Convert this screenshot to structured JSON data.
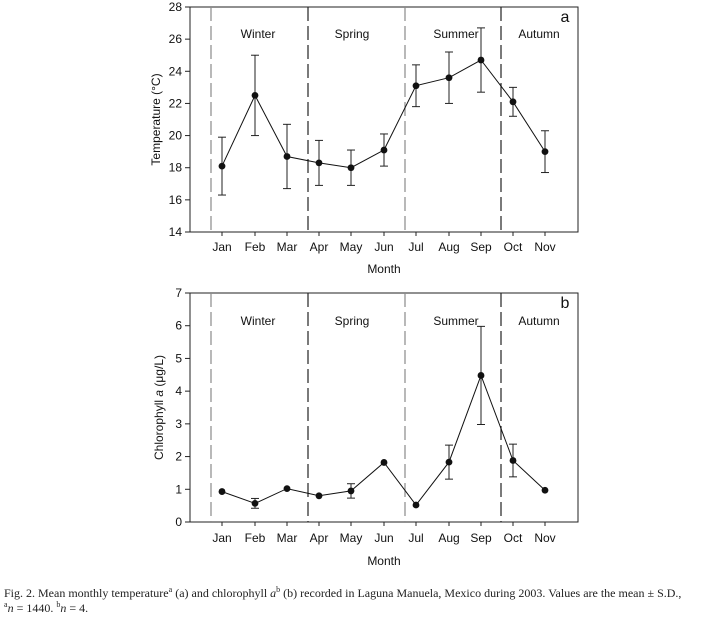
{
  "chart_data": [
    {
      "type": "line",
      "panel_label": "a",
      "xlabel": "Month",
      "ylabel": "Temperature (°C)",
      "ylim": [
        14,
        28
      ],
      "yticks": [
        14,
        16,
        18,
        20,
        22,
        24,
        26,
        28
      ],
      "categories": [
        "Jan",
        "Feb",
        "Mar",
        "Apr",
        "May",
        "Jun",
        "Jul",
        "Aug",
        "Sep",
        "Oct",
        "Nov"
      ],
      "values": [
        18.1,
        22.5,
        18.7,
        18.3,
        18.0,
        19.1,
        23.1,
        23.6,
        24.7,
        22.1,
        19.0
      ],
      "errors": [
        1.8,
        2.5,
        2.0,
        1.4,
        1.1,
        1.0,
        1.3,
        1.6,
        2.0,
        0.9,
        1.3
      ],
      "seasons": [
        "Winter",
        "Spring",
        "Summer",
        "Autumn"
      ],
      "grid": false,
      "color": "#111111"
    },
    {
      "type": "line",
      "panel_label": "b",
      "xlabel": "Month",
      "ylabel_prefix": "Chlorophyll ",
      "ylabel_italic": "a",
      "ylabel_suffix": " (μg/L)",
      "ylim": [
        0,
        7
      ],
      "yticks": [
        0,
        1,
        2,
        3,
        4,
        5,
        6,
        7
      ],
      "categories": [
        "Jan",
        "Feb",
        "Mar",
        "Apr",
        "May",
        "Jun",
        "Jul",
        "Aug",
        "Sep",
        "Oct",
        "Nov"
      ],
      "values": [
        0.93,
        0.57,
        1.02,
        0.8,
        0.95,
        1.82,
        0.52,
        1.83,
        4.48,
        1.88,
        0.97
      ],
      "errors": [
        0.0,
        0.15,
        0.0,
        0.0,
        0.22,
        0.0,
        0.0,
        0.52,
        1.5,
        0.5,
        0.0
      ],
      "seasons": [
        "Winter",
        "Spring",
        "Summer",
        "Autumn"
      ],
      "grid": false,
      "color": "#111111"
    }
  ],
  "caption": {
    "p1": "Fig. 2. Mean monthly temperature",
    "s1": "a",
    "p2": " (a) and chlorophyll ",
    "p3": "a",
    "s2": "b",
    "p4": " (b) recorded in Laguna Manuela, Mexico during 2003. Values are the mean ± S.D., ",
    "s3": "a",
    "p5": "n",
    "p6": " = 1440. ",
    "s4": "b",
    "p7": "n",
    "p8": " = 4."
  }
}
